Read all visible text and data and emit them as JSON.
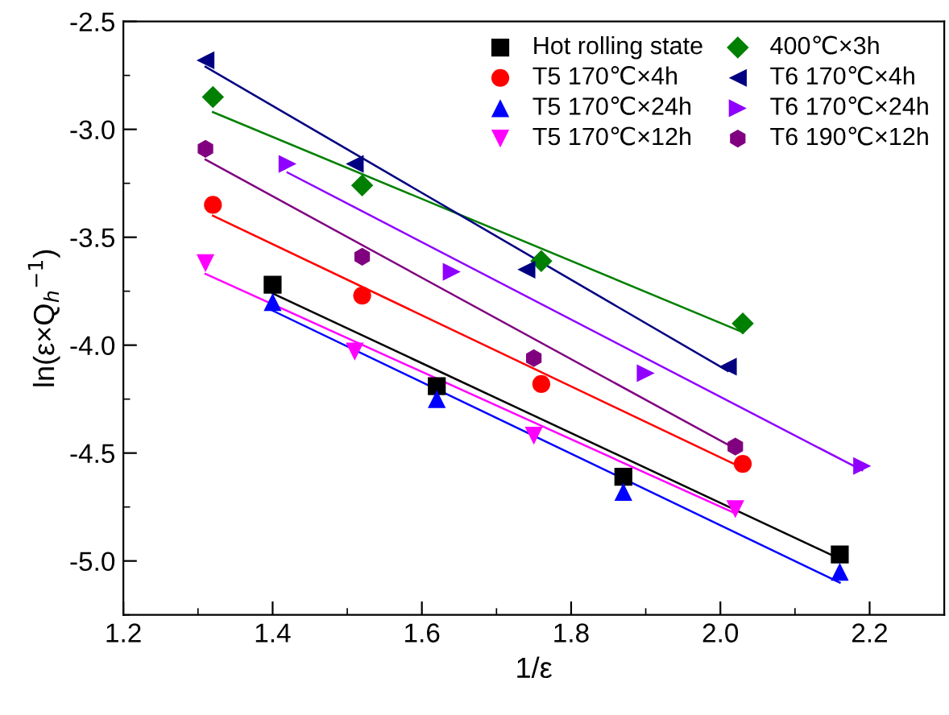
{
  "chart_data": {
    "type": "scatter",
    "xlabel": "1/ε",
    "ylabel": "ln(ε×Q$_{h}$$^{−1}$)",
    "xlim": [
      1.2,
      2.3
    ],
    "ylim": [
      -5.25,
      -2.5
    ],
    "xticks": [
      1.2,
      1.4,
      1.6,
      1.8,
      {
        "value": 2.0,
        "label": "2.0"
      },
      2.2
    ],
    "yticks": [
      -2.5,
      {
        "value": -3.0,
        "label": "-3.0"
      },
      -3.5,
      {
        "value": -4.0,
        "label": "-4.0"
      },
      -4.5,
      {
        "value": -5.0,
        "label": "-5.0"
      }
    ],
    "grid": false,
    "legend": "top right",
    "series": [
      {
        "name": "Hot rolling state",
        "color": "#000000",
        "marker": "square",
        "x": [
          1.4,
          1.62,
          1.87,
          2.16
        ],
        "values": [
          -3.72,
          -4.19,
          -4.61,
          -4.97
        ]
      },
      {
        "name": "T5 170℃×4h",
        "color": "#ff0000",
        "marker": "circle",
        "x": [
          1.32,
          1.52,
          1.76,
          2.03
        ],
        "values": [
          -3.35,
          -3.77,
          -4.18,
          -4.55
        ]
      },
      {
        "name": "T5 170℃×24h",
        "color": "#0000ff",
        "marker": "triangle",
        "x": [
          1.4,
          1.62,
          1.87,
          2.16
        ],
        "values": [
          -3.8,
          -4.25,
          -4.68,
          -5.05
        ]
      },
      {
        "name": "T5 170℃×12h",
        "color": "#ff00ff",
        "marker": "triangle-down",
        "x": [
          1.31,
          1.51,
          1.75,
          2.02
        ],
        "values": [
          -3.62,
          -4.03,
          -4.42,
          -4.76
        ]
      },
      {
        "name": "400℃×3h",
        "color": "#008000",
        "marker": "diamond",
        "x": [
          1.32,
          1.52,
          1.76,
          2.03
        ],
        "values": [
          -2.85,
          -3.26,
          -3.61,
          -3.9
        ]
      },
      {
        "name": "T6 170℃×4h",
        "color": "#000080",
        "marker": "triangle-left",
        "x": [
          1.31,
          1.51,
          1.74,
          2.01
        ],
        "values": [
          -2.68,
          -3.16,
          -3.65,
          -4.1
        ]
      },
      {
        "name": "T6 170℃×24h",
        "color": "#8f00ff",
        "marker": "triangle-right",
        "x": [
          1.42,
          1.64,
          1.9,
          2.19
        ],
        "values": [
          -3.16,
          -3.66,
          -4.13,
          -4.56
        ]
      },
      {
        "name": "T6 190℃×12h",
        "color": "#800080",
        "x": [
          1.31,
          1.52,
          1.75,
          2.02
        ],
        "values": [
          -3.09,
          -3.59,
          -4.06,
          -4.47
        ]
      },
      {
        "type": "line",
        "color": "#000000",
        "x": [
          1.4,
          2.16
        ],
        "values": [
          -3.76,
          -4.99
        ]
      },
      {
        "type": "line",
        "color": "#ff0000",
        "x": [
          1.32,
          2.03
        ],
        "values": [
          -3.4,
          -4.57
        ]
      },
      {
        "type": "line",
        "color": "#0000ff",
        "x": [
          1.4,
          2.16
        ],
        "values": [
          -3.84,
          -5.1
        ]
      },
      {
        "type": "line",
        "color": "#ff00ff",
        "x": [
          1.31,
          2.02
        ],
        "values": [
          -3.67,
          -4.78
        ]
      },
      {
        "type": "line",
        "color": "#008000",
        "x": [
          1.32,
          2.03
        ],
        "values": [
          -2.92,
          -3.94
        ]
      },
      {
        "type": "line",
        "color": "#000080",
        "x": [
          1.31,
          2.01
        ],
        "values": [
          -2.71,
          -4.12
        ]
      },
      {
        "type": "line",
        "color": "#8f00ff",
        "x": [
          1.42,
          2.19
        ],
        "values": [
          -3.2,
          -4.58
        ]
      },
      {
        "type": "line",
        "color": "#800080",
        "x": [
          1.31,
          2.02
        ],
        "values": [
          -3.14,
          -4.48
        ]
      }
    ]
  }
}
